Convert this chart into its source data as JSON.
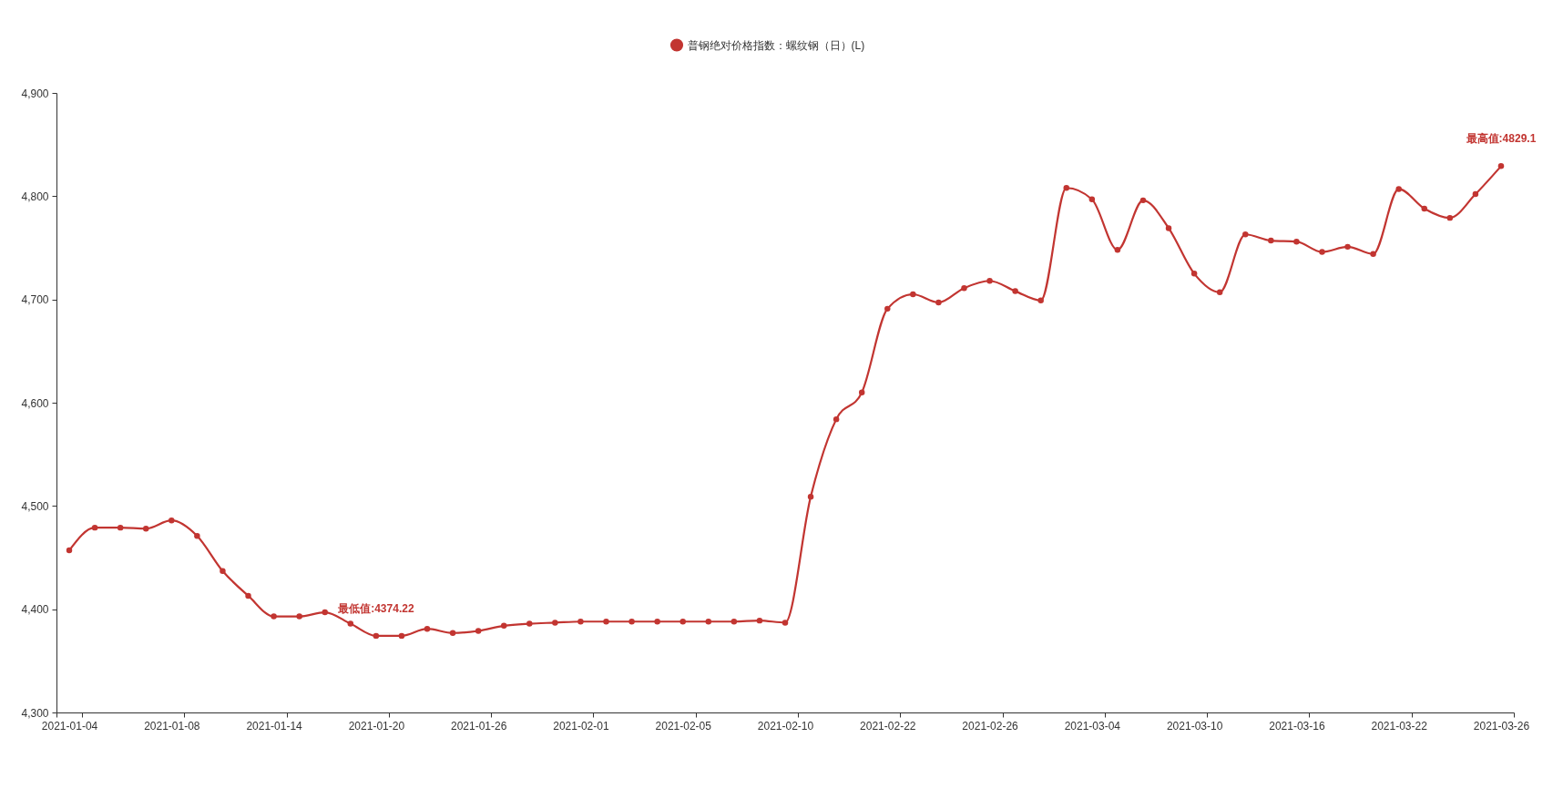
{
  "chart_data": {
    "type": "line",
    "categories": [
      "2021-01-04",
      null,
      null,
      null,
      "2021-01-08",
      null,
      null,
      null,
      "2021-01-14",
      null,
      null,
      null,
      "2021-01-20",
      null,
      null,
      null,
      "2021-01-26",
      null,
      null,
      null,
      "2021-02-01",
      null,
      null,
      null,
      "2021-02-05",
      null,
      null,
      null,
      "2021-02-10",
      null,
      null,
      null,
      "2021-02-22",
      null,
      null,
      null,
      "2021-02-26",
      null,
      null,
      null,
      "2021-03-04",
      null,
      null,
      null,
      "2021-03-10",
      null,
      null,
      null,
      "2021-03-16",
      null,
      null,
      null,
      "2021-03-22",
      null,
      null,
      null,
      "2021-03-26"
    ],
    "series": [
      {
        "name": "普钢绝对价格指数：螺纹钢（日）(L)",
        "color": "#c23531",
        "values": [
          4457,
          4479,
          4479,
          4478,
          4486,
          4471,
          4437,
          4413,
          4393,
          4393,
          4397,
          4386,
          4374.22,
          4374.22,
          4381,
          4377,
          4379,
          4384,
          4386,
          4387,
          4388,
          4388,
          4388,
          4388,
          4388,
          4388,
          4388,
          4389,
          4387,
          4509,
          4584,
          4610,
          4691,
          4705,
          4697,
          4711,
          4718,
          4708,
          4699,
          4808,
          4797,
          4748,
          4796,
          4769,
          4725,
          4707,
          4763,
          4757,
          4756,
          4746,
          4751,
          4744,
          4807,
          4788,
          4779,
          4802,
          4829.1
        ]
      }
    ],
    "ylim": [
      4300,
      4900
    ],
    "yticks": [
      {
        "value": 4300,
        "label": "4,300"
      },
      {
        "value": 4400,
        "label": "4,400"
      },
      {
        "value": 4500,
        "label": "4,500"
      },
      {
        "value": 4600,
        "label": "4,600"
      },
      {
        "value": 4700,
        "label": "4,700"
      },
      {
        "value": 4800,
        "label": "4,800"
      },
      {
        "value": 4900,
        "label": "4,900"
      }
    ],
    "marker": "circle",
    "legend": "top",
    "annotations": [
      {
        "text": "最低值:4374.22",
        "x": "2021-01-20",
        "y": 4374.22
      },
      {
        "text": "最高值:4829.1",
        "x": "2021-03-26",
        "y": 4829.1
      }
    ]
  }
}
